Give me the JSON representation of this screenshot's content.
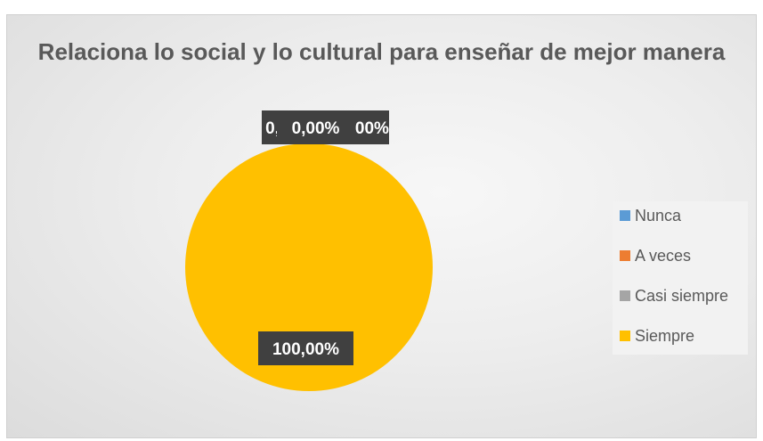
{
  "chart_data": {
    "type": "pie",
    "title": "Relaciona lo social y lo cultural para enseñar de mejor manera",
    "categories": [
      "Nunca",
      "A veces",
      "Casi siempre",
      "Siempre"
    ],
    "values": [
      0,
      0,
      0,
      100
    ],
    "data_labels": [
      "0,00%",
      "0,00%",
      "0,00%",
      "100,00%"
    ],
    "colors": [
      "#5b9bd5",
      "#ed7d31",
      "#a5a5a5",
      "#ffc000"
    ],
    "legend": {
      "position": "right"
    }
  }
}
